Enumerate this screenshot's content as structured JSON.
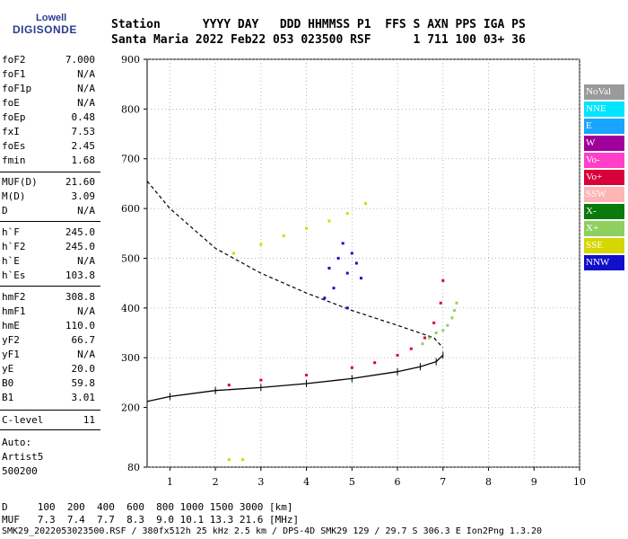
{
  "logo": {
    "line1": "Lowell",
    "line2": "DIGISONDE"
  },
  "header": {
    "line1": "Station      YYYY DAY   DDD HHMMSS P1  FFS S AXN PPS IGA PS",
    "line2": "Santa Maria 2022 Feb22 053 023500 RSF      1 711 100 03+ 36"
  },
  "params": [
    {
      "k": "foF2",
      "v": "7.000"
    },
    {
      "k": "foF1",
      "v": "N/A"
    },
    {
      "k": "foF1p",
      "v": "N/A"
    },
    {
      "k": "foE",
      "v": "N/A"
    },
    {
      "k": "foEp",
      "v": "0.48"
    },
    {
      "k": "fxI",
      "v": "7.53"
    },
    {
      "k": "foEs",
      "v": "2.45"
    },
    {
      "k": "fmin",
      "v": "1.68"
    },
    {
      "k": "MUF(D)",
      "v": "21.60"
    },
    {
      "k": "M(D)",
      "v": "3.09"
    },
    {
      "k": "D",
      "v": "N/A"
    },
    {
      "k": "h`F",
      "v": "245.0"
    },
    {
      "k": "h`F2",
      "v": "245.0"
    },
    {
      "k": "h`E",
      "v": "N/A"
    },
    {
      "k": "h`Es",
      "v": "103.8"
    },
    {
      "k": "hmF2",
      "v": "308.8"
    },
    {
      "k": "hmF1",
      "v": "N/A"
    },
    {
      "k": "hmE",
      "v": "110.0"
    },
    {
      "k": "yF2",
      "v": "66.7"
    },
    {
      "k": "yF1",
      "v": "N/A"
    },
    {
      "k": "yE",
      "v": "20.0"
    },
    {
      "k": "B0",
      "v": "59.8"
    },
    {
      "k": "B1",
      "v": "3.01"
    },
    {
      "k": "C-level",
      "v": "11"
    }
  ],
  "auto": {
    "line1": "Auto:",
    "line2": "Artist5",
    "line3": "500200"
  },
  "legend": [
    {
      "label": "NoVal",
      "bg": "#9a9a9a",
      "fg": "#ffffff"
    },
    {
      "label": "NNE",
      "bg": "#00e5ff",
      "fg": "#ffffff"
    },
    {
      "label": "E",
      "bg": "#19a5ff",
      "fg": "#ffffff"
    },
    {
      "label": "W",
      "bg": "#a0009a",
      "fg": "#ffffff"
    },
    {
      "label": "Vo-",
      "bg": "#ff3fc8",
      "fg": "#ffffff"
    },
    {
      "label": "Vo+",
      "bg": "#d8003a",
      "fg": "#ffffff"
    },
    {
      "label": "SSW",
      "bg": "#ffb5b5",
      "fg": "#ffffff"
    },
    {
      "label": "X-",
      "bg": "#0a7a0a",
      "fg": "#ffffff"
    },
    {
      "label": "X+",
      "bg": "#8fcf60",
      "fg": "#ffffff"
    },
    {
      "label": "SSE",
      "bg": "#d6d600",
      "fg": "#ffffff"
    },
    {
      "label": "NNW",
      "bg": "#1010cc",
      "fg": "#ffffff"
    }
  ],
  "footer": {
    "line1": "D     100  200  400  600  800 1000 1500 3000 [km]",
    "line2": "MUF   7.3  7.4  7.7  8.3  9.0 10.1 13.3 21.6 [MHz]",
    "line3": "SMK29_2022053023500.RSF / 380fx512h 25 kHz 2.5 km / DPS-4D SMK29 129 / 29.7 S 306.3 E Ion2Png 1.3.20"
  },
  "chart_data": {
    "type": "scatter",
    "xlim": [
      0.5,
      10
    ],
    "ylim": [
      80,
      900
    ],
    "xticks": [
      "1",
      "2",
      "3",
      "4",
      "5",
      "6",
      "7",
      "8",
      "9",
      "10"
    ],
    "yticks": [
      "80",
      "200",
      "300",
      "400",
      "500",
      "600",
      "700",
      "800",
      "900"
    ],
    "grid": "dotted",
    "series": [
      {
        "name": "X+",
        "x": [
          6.55,
          6.7,
          6.85,
          7.0,
          7.1,
          7.2,
          7.25,
          7.3
        ],
        "y": [
          328,
          340,
          350,
          355,
          365,
          380,
          395,
          410
        ]
      },
      {
        "name": "Vo+",
        "x": [
          2.3,
          3.0,
          4.0,
          5.0,
          5.5,
          6.0,
          6.3,
          6.6,
          6.8,
          6.95,
          7.0
        ],
        "y": [
          245,
          255,
          265,
          280,
          290,
          305,
          318,
          340,
          370,
          410,
          455
        ]
      },
      {
        "name": "NNW",
        "x": [
          4.5,
          4.7,
          4.9,
          5.0,
          5.1,
          4.6,
          4.8,
          5.2,
          4.4,
          4.9
        ],
        "y": [
          480,
          500,
          470,
          510,
          490,
          440,
          530,
          460,
          420,
          400
        ]
      },
      {
        "name": "SSE",
        "x": [
          2.4,
          3.0,
          3.5,
          4.0,
          4.5,
          4.9,
          5.3,
          2.3,
          2.6
        ],
        "y": [
          510,
          528,
          545,
          560,
          575,
          590,
          610,
          95,
          95
        ]
      }
    ],
    "profile": {
      "x": [
        0.5,
        1.0,
        2.0,
        3.0,
        4.0,
        5.0,
        6.0,
        6.5,
        6.85,
        7.0
      ],
      "y": [
        212,
        222,
        234,
        240,
        248,
        258,
        272,
        282,
        292,
        305
      ]
    },
    "virtual_height": {
      "x": [
        0.5,
        1.0,
        1.5,
        2.0,
        3.0,
        4.0,
        5.0,
        6.0,
        6.8,
        7.0
      ],
      "y": [
        655,
        600,
        560,
        520,
        470,
        430,
        395,
        365,
        340,
        320
      ]
    }
  }
}
